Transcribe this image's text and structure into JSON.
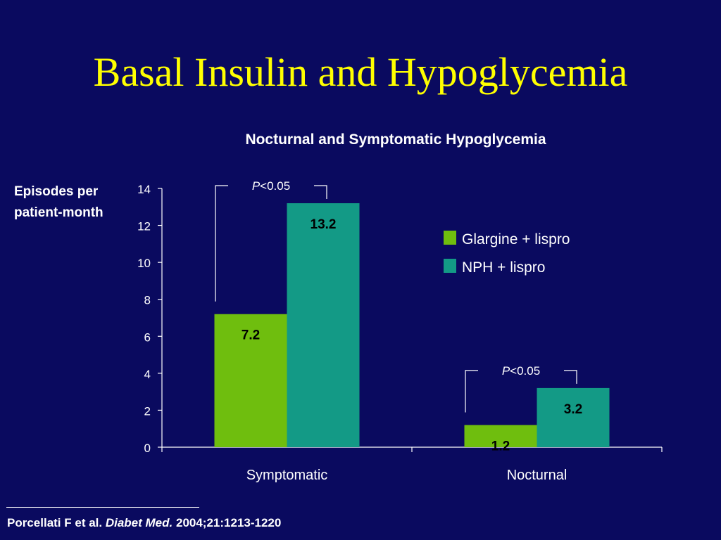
{
  "slide": {
    "title": "Basal Insulin and Hypoglycemia"
  },
  "chart_data": {
    "type": "bar",
    "title": "Nocturnal and Symptomatic Hypoglycemia",
    "ylabel": "Episodes per patient-month",
    "xlabel": "",
    "ylim": [
      0,
      14
    ],
    "yticks": [
      0,
      2,
      4,
      6,
      8,
      10,
      12,
      14
    ],
    "categories": [
      "Symptomatic",
      "Nocturnal"
    ],
    "series": [
      {
        "name": "Glargine + lispro",
        "values": [
          7.2,
          1.2
        ],
        "labels": [
          "7.2",
          "1.2"
        ],
        "color": "#6fbe0e"
      },
      {
        "name": "NPH  + lispro",
        "values": [
          13.2,
          3.2
        ],
        "labels": [
          "13.2",
          "3.2"
        ],
        "color": "#139a86"
      }
    ],
    "annotations": [
      {
        "category": "Symptomatic",
        "p_italic": "P",
        "p_text": "<0.05"
      },
      {
        "category": "Nocturnal",
        "p_italic": "P",
        "p_text": "<0.05"
      }
    ],
    "legend_position": "right",
    "grid": false,
    "data_label_color": "#000000"
  },
  "citation": {
    "authors": "Porcellati F et al.",
    "journal": "Diabet Med.",
    "details": "2004;21:1213-1220"
  },
  "colors": {
    "background": "#0a0a5f",
    "title": "#ffff00",
    "text": "#ffffff"
  }
}
